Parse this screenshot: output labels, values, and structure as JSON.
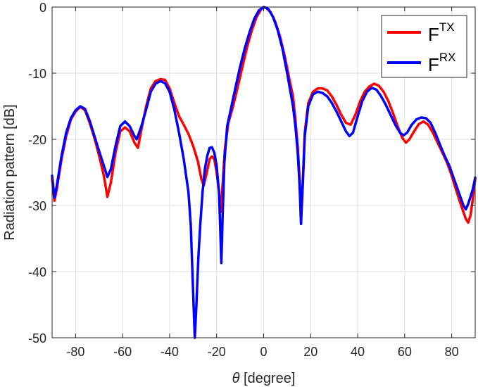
{
  "chart_data": {
    "type": "line",
    "title": "",
    "xlabel": {
      "symbol": "θ",
      "rest": " [degree]"
    },
    "ylabel": "Radiation pattern [dB]",
    "xlim": [
      -90,
      90
    ],
    "ylim": [
      -50,
      0
    ],
    "xticks": [
      -80,
      -60,
      -40,
      -20,
      0,
      20,
      40,
      60,
      80
    ],
    "yticks": [
      0,
      -10,
      -20,
      -30,
      -40,
      -50
    ],
    "xtick_labels": [
      "-80",
      "-60",
      "-40",
      "-20",
      "0",
      "20",
      "40",
      "60",
      "80"
    ],
    "ytick_labels": [
      "0",
      "-10",
      "-20",
      "-30",
      "-40",
      "-50"
    ],
    "grid": true,
    "legend_position": "top-right",
    "series": [
      {
        "name": "F",
        "sup": "TX",
        "color": "#ff0000",
        "points": [
          [
            -90,
            -26
          ],
          [
            -89,
            -29.3
          ],
          [
            -88,
            -27.5
          ],
          [
            -86,
            -23
          ],
          [
            -84,
            -19.5
          ],
          [
            -82,
            -17
          ],
          [
            -80,
            -15.8
          ],
          [
            -78,
            -15.1
          ],
          [
            -76,
            -15.6
          ],
          [
            -74,
            -17.5
          ],
          [
            -72,
            -19.8
          ],
          [
            -70,
            -22.5
          ],
          [
            -68,
            -25.5
          ],
          [
            -66.5,
            -28.7
          ],
          [
            -65,
            -26.5
          ],
          [
            -63,
            -22
          ],
          [
            -61,
            -18.8
          ],
          [
            -59,
            -18.2
          ],
          [
            -57,
            -18.8
          ],
          [
            -55,
            -20.5
          ],
          [
            -53.5,
            -21.3
          ],
          [
            -52,
            -18.5
          ],
          [
            -50,
            -15
          ],
          [
            -48,
            -12.3
          ],
          [
            -46,
            -11.2
          ],
          [
            -44,
            -10.9
          ],
          [
            -42,
            -11
          ],
          [
            -40,
            -12.3
          ],
          [
            -38,
            -14.5
          ],
          [
            -36,
            -16.5
          ],
          [
            -34,
            -17.8
          ],
          [
            -32,
            -19.2
          ],
          [
            -30,
            -21
          ],
          [
            -28,
            -23.3
          ],
          [
            -26.5,
            -26
          ],
          [
            -25.5,
            -27
          ],
          [
            -24.5,
            -25.5
          ],
          [
            -23,
            -23
          ],
          [
            -22,
            -22.6
          ],
          [
            -21,
            -23
          ],
          [
            -20,
            -25
          ],
          [
            -19,
            -28
          ],
          [
            -18.3,
            -31
          ],
          [
            -17.5,
            -27
          ],
          [
            -16.5,
            -21.5
          ],
          [
            -15,
            -17.5
          ],
          [
            -13,
            -15
          ],
          [
            -11,
            -12
          ],
          [
            -9,
            -9
          ],
          [
            -7,
            -6
          ],
          [
            -5,
            -3.5
          ],
          [
            -3,
            -1.5
          ],
          [
            -1,
            -0.3
          ],
          [
            0,
            0
          ],
          [
            1,
            -0.1
          ],
          [
            3,
            -0.8
          ],
          [
            5,
            -2.3
          ],
          [
            7,
            -4.5
          ],
          [
            9,
            -7.5
          ],
          [
            11,
            -11
          ],
          [
            12.5,
            -13.5
          ],
          [
            13.5,
            -17
          ],
          [
            14.5,
            -21
          ],
          [
            15.3,
            -26
          ],
          [
            16,
            -31.5
          ],
          [
            16.7,
            -26.5
          ],
          [
            17.5,
            -19
          ],
          [
            19,
            -14.5
          ],
          [
            21,
            -12.8
          ],
          [
            23,
            -12.3
          ],
          [
            25,
            -12.3
          ],
          [
            27,
            -12.6
          ],
          [
            29,
            -13.5
          ],
          [
            31,
            -14.8
          ],
          [
            33,
            -16.3
          ],
          [
            35,
            -17.5
          ],
          [
            37,
            -17.8
          ],
          [
            39,
            -16.3
          ],
          [
            41,
            -14.3
          ],
          [
            43,
            -12.8
          ],
          [
            45,
            -12
          ],
          [
            47,
            -11.6
          ],
          [
            49,
            -11.9
          ],
          [
            51,
            -12.8
          ],
          [
            53,
            -14.2
          ],
          [
            55,
            -16
          ],
          [
            57,
            -18
          ],
          [
            59,
            -19.8
          ],
          [
            60.5,
            -20.5
          ],
          [
            62,
            -20
          ],
          [
            64,
            -18.8
          ],
          [
            66,
            -17.7
          ],
          [
            68,
            -17.3
          ],
          [
            70,
            -17.8
          ],
          [
            72,
            -19
          ],
          [
            74,
            -20.5
          ],
          [
            76,
            -22
          ],
          [
            78,
            -23.5
          ],
          [
            80,
            -25.5
          ],
          [
            82,
            -27.8
          ],
          [
            84,
            -30
          ],
          [
            86,
            -32
          ],
          [
            87,
            -32.6
          ],
          [
            88,
            -31.5
          ],
          [
            89,
            -29
          ],
          [
            90,
            -26
          ]
        ]
      },
      {
        "name": "F",
        "sup": "RX",
        "color": "#0000ff",
        "points": [
          [
            -90,
            -25.5
          ],
          [
            -89,
            -28.8
          ],
          [
            -88,
            -27
          ],
          [
            -86,
            -22.5
          ],
          [
            -84,
            -19
          ],
          [
            -82,
            -16.8
          ],
          [
            -80,
            -15.6
          ],
          [
            -78,
            -15
          ],
          [
            -76,
            -15.4
          ],
          [
            -74,
            -17.2
          ],
          [
            -72,
            -19.5
          ],
          [
            -70,
            -21.8
          ],
          [
            -68,
            -24
          ],
          [
            -66.5,
            -25.7
          ],
          [
            -65,
            -24.5
          ],
          [
            -63,
            -21
          ],
          [
            -61,
            -18
          ],
          [
            -59,
            -17.3
          ],
          [
            -57,
            -18
          ],
          [
            -55,
            -19.5
          ],
          [
            -54,
            -20
          ],
          [
            -52,
            -18
          ],
          [
            -50,
            -15.5
          ],
          [
            -48,
            -12.8
          ],
          [
            -46,
            -11.6
          ],
          [
            -44,
            -11.2
          ],
          [
            -42,
            -11.5
          ],
          [
            -40,
            -12.8
          ],
          [
            -38,
            -15.5
          ],
          [
            -36,
            -19
          ],
          [
            -34,
            -23
          ],
          [
            -32,
            -28
          ],
          [
            -31,
            -33
          ],
          [
            -30.3,
            -40
          ],
          [
            -29.7,
            -46
          ],
          [
            -29.3,
            -50
          ],
          [
            -28.6,
            -45
          ],
          [
            -27.8,
            -38
          ],
          [
            -27,
            -33
          ],
          [
            -26,
            -28
          ],
          [
            -25,
            -24.5
          ],
          [
            -24,
            -22.5
          ],
          [
            -23,
            -21.3
          ],
          [
            -22,
            -21.2
          ],
          [
            -21,
            -22
          ],
          [
            -20,
            -24
          ],
          [
            -19,
            -28
          ],
          [
            -18.5,
            -33
          ],
          [
            -18,
            -38.7
          ],
          [
            -17.4,
            -31
          ],
          [
            -16.7,
            -23.5
          ],
          [
            -15.5,
            -18
          ],
          [
            -14,
            -15.5
          ],
          [
            -12,
            -12.2
          ],
          [
            -10,
            -9
          ],
          [
            -8,
            -6.2
          ],
          [
            -6,
            -3.8
          ],
          [
            -4,
            -1.8
          ],
          [
            -2,
            -0.5
          ],
          [
            0,
            0
          ],
          [
            2,
            -0.3
          ],
          [
            4,
            -1.5
          ],
          [
            6,
            -3.5
          ],
          [
            8,
            -6.3
          ],
          [
            10,
            -10
          ],
          [
            11.5,
            -13
          ],
          [
            12.5,
            -15
          ],
          [
            13.5,
            -18
          ],
          [
            14.5,
            -22
          ],
          [
            15.3,
            -27
          ],
          [
            15.9,
            -32.8
          ],
          [
            16.6,
            -27
          ],
          [
            17.5,
            -19.5
          ],
          [
            19,
            -15
          ],
          [
            21,
            -13.2
          ],
          [
            23,
            -12.8
          ],
          [
            25,
            -13
          ],
          [
            27,
            -13.5
          ],
          [
            29,
            -14.5
          ],
          [
            31,
            -15.8
          ],
          [
            33,
            -17.3
          ],
          [
            35,
            -18.8
          ],
          [
            36.5,
            -19.5
          ],
          [
            38,
            -19
          ],
          [
            40,
            -16.5
          ],
          [
            42,
            -14.2
          ],
          [
            44,
            -12.8
          ],
          [
            46,
            -12.2
          ],
          [
            48,
            -12.5
          ],
          [
            50,
            -13.5
          ],
          [
            52,
            -14.8
          ],
          [
            54,
            -16.3
          ],
          [
            56,
            -17.8
          ],
          [
            58,
            -19
          ],
          [
            59.5,
            -19.4
          ],
          [
            61,
            -19
          ],
          [
            63,
            -17.8
          ],
          [
            65,
            -17
          ],
          [
            67,
            -16.7
          ],
          [
            69,
            -16.8
          ],
          [
            71,
            -17.5
          ],
          [
            73,
            -19
          ],
          [
            75,
            -20.8
          ],
          [
            77,
            -22.5
          ],
          [
            79,
            -24
          ],
          [
            81,
            -26
          ],
          [
            83,
            -28
          ],
          [
            85,
            -30
          ],
          [
            86,
            -30.6
          ],
          [
            87,
            -29.8
          ],
          [
            88,
            -28.7
          ],
          [
            89,
            -27.5
          ],
          [
            90,
            -25.8
          ]
        ]
      }
    ]
  }
}
